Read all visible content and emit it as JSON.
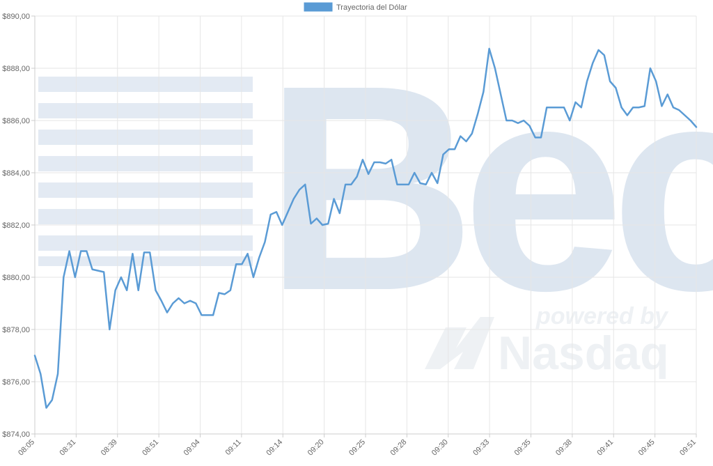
{
  "chart_data": {
    "type": "line",
    "legend": {
      "label": "Trayectoria del Dólar",
      "color": "#5a9bd5",
      "placement": "top-center"
    },
    "ylim": [
      874,
      890
    ],
    "y_ticks": [
      "$890,00",
      "$888,00",
      "$886,00",
      "$884,00",
      "$882,00",
      "$880,00",
      "$878,00",
      "$876,00",
      "$874,00"
    ],
    "x_tick_labels": [
      "08:05",
      "08:31",
      "08:39",
      "08:51",
      "09:04",
      "09:11",
      "09:14",
      "09:20",
      "09:25",
      "09:28",
      "09:30",
      "09:33",
      "09:35",
      "09:38",
      "09:41",
      "09:45",
      "09:51"
    ],
    "grid": true,
    "series": [
      {
        "name": "Trayectoria del Dólar",
        "color": "#5a9bd5",
        "values": [
          877.0,
          876.3,
          875.0,
          875.3,
          876.3,
          880.0,
          881.0,
          880.0,
          881.0,
          881.0,
          880.3,
          880.25,
          880.2,
          878.0,
          879.5,
          880.0,
          879.5,
          880.9,
          879.5,
          880.95,
          880.95,
          879.5,
          879.1,
          878.65,
          879.0,
          879.2,
          879.0,
          879.1,
          879.0,
          878.55,
          878.55,
          878.55,
          879.4,
          879.35,
          879.5,
          880.5,
          880.5,
          880.9,
          880.0,
          880.75,
          881.35,
          882.4,
          882.5,
          882.0,
          882.5,
          883.0,
          883.35,
          883.55,
          882.05,
          882.25,
          882.0,
          882.05,
          883.0,
          882.45,
          883.55,
          883.55,
          883.85,
          884.5,
          883.95,
          884.4,
          884.4,
          884.35,
          884.5,
          883.55,
          883.55,
          883.55,
          884.0,
          883.6,
          883.55,
          884.0,
          883.6,
          884.7,
          884.9,
          884.9,
          885.4,
          885.2,
          885.5,
          886.25,
          887.1,
          888.75,
          888.0,
          887.0,
          886.0,
          886.0,
          885.9,
          886.0,
          885.8,
          885.35,
          885.35,
          886.5,
          886.5,
          886.5,
          886.5,
          886.0,
          886.7,
          886.5,
          887.5,
          888.2,
          888.7,
          888.5,
          887.5,
          887.25,
          886.5,
          886.2,
          886.5,
          886.5,
          886.55,
          888.0,
          887.5,
          886.55,
          887.0,
          886.5,
          886.4,
          886.2,
          886.0,
          885.75
        ]
      }
    ]
  },
  "watermark": {
    "brand_text": "Bec",
    "powered_text": "powered by",
    "nasdaq_text": "Nasdaq",
    "color": "#dde6f0"
  }
}
